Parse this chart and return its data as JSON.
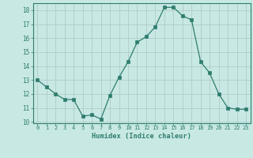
{
  "x": [
    0,
    1,
    2,
    3,
    4,
    5,
    6,
    7,
    8,
    9,
    10,
    11,
    12,
    13,
    14,
    15,
    16,
    17,
    18,
    19,
    20,
    21,
    22,
    23
  ],
  "y": [
    13.0,
    12.5,
    12.0,
    11.6,
    11.6,
    10.4,
    10.5,
    10.2,
    11.9,
    13.2,
    14.3,
    15.7,
    16.1,
    16.8,
    18.2,
    18.2,
    17.6,
    17.3,
    14.3,
    13.5,
    12.0,
    11.0,
    10.9,
    10.9
  ],
  "bg_color": "#c8e8e4",
  "line_color": "#2e7d6e",
  "grid_color": "#b0cccc",
  "xlabel": "Humidex (Indice chaleur)",
  "xlim": [
    -0.5,
    23.5
  ],
  "ylim": [
    9.9,
    18.5
  ],
  "yticks": [
    10,
    11,
    12,
    13,
    14,
    15,
    16,
    17,
    18
  ],
  "xticks": [
    0,
    1,
    2,
    3,
    4,
    5,
    6,
    7,
    8,
    9,
    10,
    11,
    12,
    13,
    14,
    15,
    16,
    17,
    18,
    19,
    20,
    21,
    22,
    23
  ]
}
